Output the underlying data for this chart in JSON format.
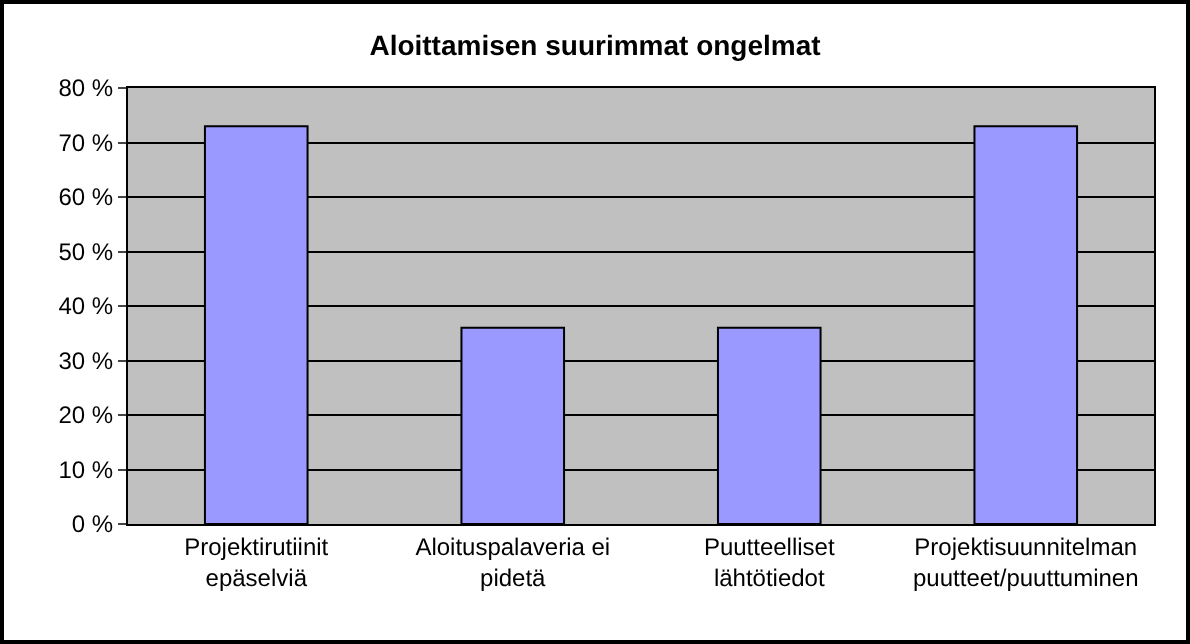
{
  "chart_data": {
    "type": "bar",
    "title": "Aloittamisen suurimmat ongelmat",
    "categories": [
      "Projektirutiinit\nepäselviä",
      "Aloituspalaveria ei\npidetä",
      "Puutteelliset\nlähtötiedot",
      "Projektisuunnitelman\npuutteet/puuttuminen"
    ],
    "values": [
      73,
      36,
      36,
      73
    ],
    "color": "#9999ff",
    "ylim": [
      0,
      80
    ],
    "yticks": [
      {
        "value": 0,
        "label": "0 %"
      },
      {
        "value": 10,
        "label": "10 %"
      },
      {
        "value": 20,
        "label": "20 %"
      },
      {
        "value": 30,
        "label": "30 %"
      },
      {
        "value": 40,
        "label": "40 %"
      },
      {
        "value": 50,
        "label": "50 %"
      },
      {
        "value": 60,
        "label": "60 %"
      },
      {
        "value": 70,
        "label": "70 %"
      },
      {
        "value": 80,
        "label": "80 %"
      }
    ],
    "grid": "y"
  }
}
